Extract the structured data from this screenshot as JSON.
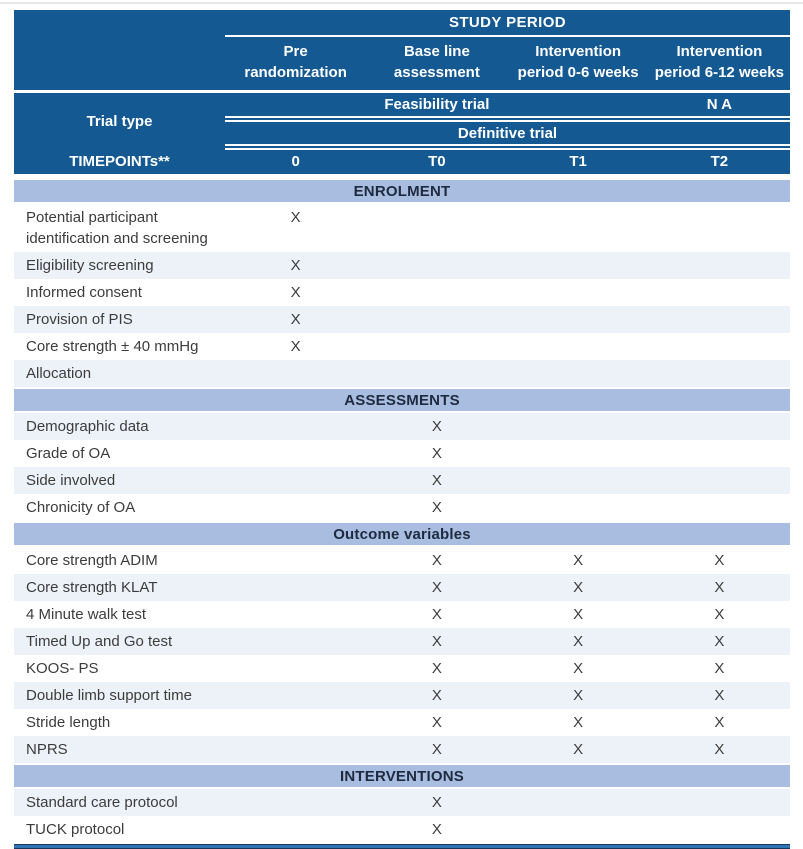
{
  "table": {
    "study_period_label": "STUDY PERIOD",
    "columns": [
      [
        "Pre",
        "randomization"
      ],
      [
        "Base line",
        "assessment"
      ],
      [
        "Intervention",
        "period 0-6 weeks"
      ],
      [
        "Intervention",
        "period 6-12 weeks"
      ]
    ],
    "trial_type_label": "Trial type",
    "feasibility_label": "Feasibility trial",
    "feasibility_na": "N A",
    "definitive_label": "Definitive trial",
    "timepoints_label": "TIMEPOINTs**",
    "timepoints": [
      "0",
      "T0",
      "T1",
      "T2"
    ],
    "sections": [
      {
        "title": "ENROLMENT",
        "rows": [
          {
            "label": "Potential participant identification and screening",
            "marks": [
              "X",
              "",
              "",
              ""
            ]
          },
          {
            "label": "Eligibility screening",
            "marks": [
              "X",
              "",
              "",
              ""
            ]
          },
          {
            "label": "Informed consent",
            "marks": [
              "X",
              "",
              "",
              ""
            ]
          },
          {
            "label": "Provision of PIS",
            "marks": [
              "X",
              "",
              "",
              ""
            ]
          },
          {
            "label": "Core strength ± 40 mmHg",
            "marks": [
              "X",
              "",
              "",
              ""
            ]
          },
          {
            "label": "Allocation",
            "marks": [
              "",
              "",
              "",
              ""
            ]
          }
        ]
      },
      {
        "title": "ASSESSMENTS",
        "rows": [
          {
            "label": "Demographic data",
            "marks": [
              "",
              "X",
              "",
              ""
            ]
          },
          {
            "label": "Grade of OA",
            "marks": [
              "",
              "X",
              "",
              ""
            ]
          },
          {
            "label": "Side involved",
            "marks": [
              "",
              "X",
              "",
              ""
            ]
          },
          {
            "label": "Chronicity of OA",
            "marks": [
              "",
              "X",
              "",
              ""
            ]
          }
        ]
      },
      {
        "title": "Outcome variables",
        "rows": [
          {
            "label": "Core strength ADIM",
            "marks": [
              "",
              "X",
              "X",
              "X"
            ]
          },
          {
            "label": "Core strength KLAT",
            "marks": [
              "",
              "X",
              "X",
              "X"
            ]
          },
          {
            "label": "4 Minute walk test",
            "marks": [
              "",
              "X",
              "X",
              "X"
            ]
          },
          {
            "label": "Timed Up and Go test",
            "marks": [
              "",
              "X",
              "X",
              "X"
            ]
          },
          {
            "label": "KOOS- PS",
            "marks": [
              "",
              "X",
              "X",
              "X"
            ]
          },
          {
            "label": "Double limb support time",
            "marks": [
              "",
              "X",
              "X",
              "X"
            ]
          },
          {
            "label": "Stride length",
            "marks": [
              "",
              "X",
              "X",
              "X"
            ]
          },
          {
            "label": "NPRS",
            "marks": [
              "",
              "X",
              "X",
              "X"
            ]
          }
        ]
      },
      {
        "title": "INTERVENTIONS",
        "rows": [
          {
            "label": "Standard care protocol",
            "marks": [
              "",
              "X",
              "",
              ""
            ]
          },
          {
            "label": "TUCK protocol",
            "marks": [
              "",
              "X",
              "",
              ""
            ]
          }
        ]
      }
    ],
    "colors": {
      "header_blue": "#155993",
      "banner_blue": "#a9bde1",
      "row_alt": "#edf2f8",
      "row_white": "#ffffff",
      "body_text": "#3c3c3c",
      "banner_text": "#1e2b3f",
      "header_text": "#ffffff",
      "bottom_rule_dark": "#17365d",
      "bottom_rule_mid": "#2e74b5"
    }
  }
}
